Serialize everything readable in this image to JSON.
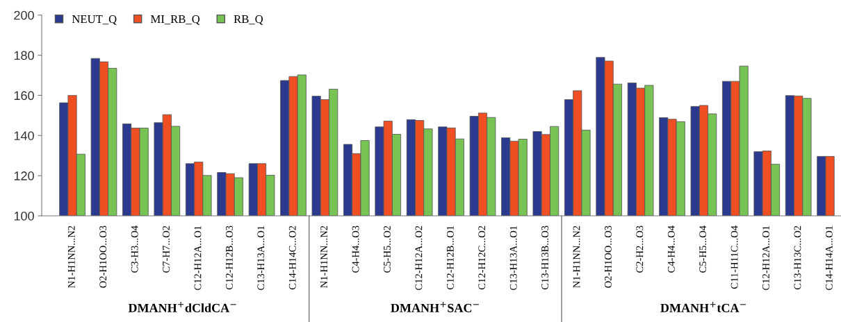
{
  "chart_data": {
    "type": "bar",
    "categories": [
      "N1-H1NN...N2",
      "O2-H1OO...O3",
      "C3-H3...O4",
      "C7-H7...O2",
      "C12-H12A...O1",
      "C12-H12B...O3",
      "C13-H13A...O1",
      "C14-H14C...O2",
      "N1-H1NN...N2",
      "C4-H4...O3",
      "C5-H5...O2",
      "C12-H12A...O2",
      "C12-H12B...O1",
      "C12-H12C...O2",
      "C13-H13A...O1",
      "C13-H13B...O3",
      "N1-H1NN...N2",
      "O2-H1OO...O3",
      "C2-H2...O3",
      "C4-H4...O4",
      "C5-H5...O4",
      "C11-H11C...O4",
      "C12-H12A...O1",
      "C13-H13C...O2",
      "C14-H14A...O1"
    ],
    "series": [
      {
        "name": "NEUT_Q",
        "color": "#2b3a8f",
        "values": [
          156.3,
          178.4,
          145.8,
          146.4,
          126.0,
          121.6,
          126.0,
          167.4,
          159.6,
          135.6,
          144.3,
          147.9,
          144.3,
          149.6,
          138.9,
          142.0,
          157.9,
          178.9,
          166.2,
          148.9,
          154.5,
          167.0,
          132.0,
          159.9,
          129.6
        ]
      },
      {
        "name": "MI_RB_Q",
        "color": "#f04e23",
        "values": [
          160.0,
          176.7,
          143.7,
          150.4,
          126.8,
          121.0,
          126.0,
          169.4,
          157.9,
          131.0,
          147.2,
          147.5,
          143.8,
          151.2,
          137.2,
          140.5,
          162.3,
          177.1,
          163.6,
          148.1,
          155.0,
          167.0,
          132.3,
          159.7,
          129.6
        ]
      },
      {
        "name": "RB_Q",
        "color": "#77c353",
        "values": [
          130.7,
          173.5,
          143.7,
          144.6,
          120.1,
          119.0,
          120.2,
          170.2,
          163.1,
          137.5,
          140.6,
          143.3,
          138.3,
          149.0,
          138.2,
          144.5,
          142.7,
          165.6,
          165.0,
          146.9,
          150.8,
          174.6,
          125.7,
          158.5,
          null
        ]
      }
    ],
    "ylim": [
      100,
      200
    ],
    "yticks": [
      100,
      120,
      140,
      160,
      180,
      200
    ],
    "grid": false,
    "legend": "top left",
    "annotations": [
      "DMANH$^{+}$dCldCA$^{−}$",
      "DMANH$^{+}$SAC$^{−}$",
      "DMANH$^{+}$tCA$^{−}$"
    ]
  }
}
